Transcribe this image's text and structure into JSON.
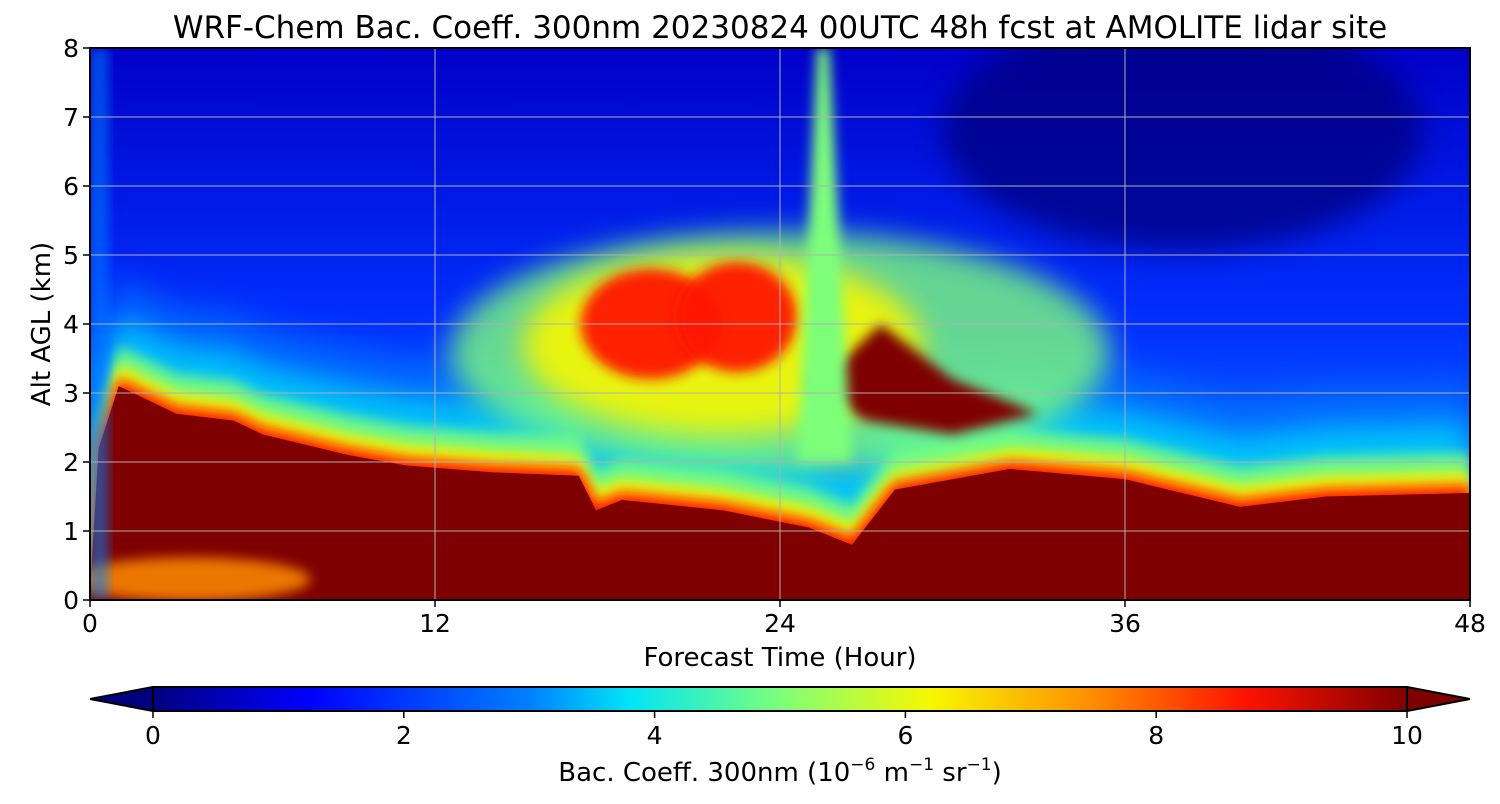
{
  "chart_data": {
    "type": "heatmap",
    "title": "WRF-Chem Bac. Coeff. 300nm  20230824 00UTC 48h fcst at AMOLITE lidar site",
    "xlabel": "Forecast Time (Hour)",
    "ylabel": "Alt AGL (km)",
    "xlim": [
      0,
      48
    ],
    "ylim": [
      0,
      8
    ],
    "xticks": [
      "0",
      "12",
      "24",
      "36",
      "48"
    ],
    "yticks": [
      "0",
      "1",
      "2",
      "3",
      "4",
      "5",
      "6",
      "7",
      "8"
    ],
    "grid": true,
    "colormap": "jet",
    "colorbar": {
      "label_main": "Bac. Coeff. 300nm  (10",
      "exp1": "−6",
      "label_mid": " m",
      "exp2": "−1",
      "label_end": " sr",
      "exp3": "−1",
      "label_close": ")",
      "range": [
        0,
        10
      ],
      "ticks": [
        "0",
        "2",
        "4",
        "6",
        "8",
        "10"
      ],
      "extend": "both",
      "placement": "bottom"
    },
    "colors": [
      "#00007f",
      "#0000ff",
      "#0080ff",
      "#00e5f7",
      "#7dff7a",
      "#f7f700",
      "#ff8c00",
      "#ff1300",
      "#7f0000"
    ],
    "layer_top_km": [
      [
        0,
        0.1
      ],
      [
        0.3,
        2.2
      ],
      [
        1,
        3.1
      ],
      [
        3,
        2.7
      ],
      [
        5,
        2.6
      ],
      [
        6,
        2.4
      ],
      [
        9,
        2.1
      ],
      [
        11,
        1.95
      ],
      [
        14,
        1.85
      ],
      [
        17,
        1.8
      ],
      [
        17.6,
        1.3
      ],
      [
        18.5,
        1.45
      ],
      [
        22,
        1.3
      ],
      [
        25,
        1.05
      ],
      [
        26.5,
        0.8
      ],
      [
        28,
        1.6
      ],
      [
        30,
        1.75
      ],
      [
        32,
        1.9
      ],
      [
        36,
        1.75
      ],
      [
        40,
        1.35
      ],
      [
        43,
        1.5
      ],
      [
        48,
        1.55
      ]
    ],
    "dust_plume": {
      "x_range": [
        16,
        34
      ],
      "y_range": [
        2.5,
        5.5
      ],
      "peak_value": 10
    }
  }
}
